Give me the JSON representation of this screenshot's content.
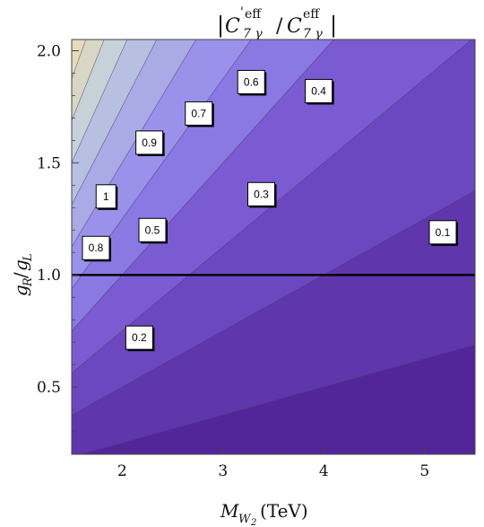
{
  "chart_data": {
    "type": "contour",
    "title": "|C'eff7γ / Ceff7γ|",
    "title_parts": {
      "left_bar": "|",
      "c1": "C",
      "prime": "'",
      "c1_sup": "eff",
      "c1_sub": "7 γ",
      "slash": "/",
      "c2": "C",
      "c2_sup": "eff",
      "c2_sub": "7 γ",
      "right_bar": "|"
    },
    "xlabel": "M_W2 (TeV)",
    "xlabel_parts": {
      "main": "M",
      "sub": "W",
      "subsub": "2",
      "unit": "(TeV)"
    },
    "ylabel": "g_R/g_L",
    "ylabel_parts": {
      "g1": "g",
      "s1": "R",
      "slash": "/",
      "g2": "g",
      "s2": "L"
    },
    "xlim": [
      1.5,
      5.5
    ],
    "ylim": [
      0.2,
      2.05
    ],
    "x_ticks": [
      2,
      3,
      4,
      5
    ],
    "x_tick_labels": [
      "2",
      "3",
      "4",
      "5"
    ],
    "y_ticks": [
      0.5,
      1.0,
      1.5,
      2.0
    ],
    "y_tick_labels": [
      "0.5",
      "1.0",
      "1.5",
      "2.0"
    ],
    "model": {
      "form": "value = k * (g_R/g_L) / M_W2",
      "k": 0.8
    },
    "contour_levels": [
      0.1,
      0.2,
      0.3,
      0.4,
      0.5,
      0.6,
      0.7,
      0.8,
      0.9,
      1.0
    ],
    "contour_labels": [
      {
        "text": "0.1",
        "x": 5.18,
        "y": 1.19
      },
      {
        "text": "0.2",
        "x": 2.17,
        "y": 0.72
      },
      {
        "text": "0.3",
        "x": 3.38,
        "y": 1.36
      },
      {
        "text": "0.4",
        "x": 3.95,
        "y": 1.82
      },
      {
        "text": "0.5",
        "x": 2.3,
        "y": 1.2
      },
      {
        "text": "0.6",
        "x": 3.28,
        "y": 1.86
      },
      {
        "text": "0.7",
        "x": 2.76,
        "y": 1.72
      },
      {
        "text": "0.8",
        "x": 1.74,
        "y": 1.12
      },
      {
        "text": "0.9",
        "x": 2.27,
        "y": 1.59
      },
      {
        "text": "1",
        "x": 1.84,
        "y": 1.35
      }
    ],
    "reference_line": {
      "y": 1.0
    },
    "colors": {
      "stops": [
        {
          "v": 0.0,
          "color": "#4a1c8b"
        },
        {
          "v": 0.1,
          "color": "#53259a"
        },
        {
          "v": 0.2,
          "color": "#5f36ab"
        },
        {
          "v": 0.3,
          "color": "#6b48bf"
        },
        {
          "v": 0.4,
          "color": "#7a5bd1"
        },
        {
          "v": 0.5,
          "color": "#8a78e3"
        },
        {
          "v": 0.6,
          "color": "#9a92ea"
        },
        {
          "v": 0.7,
          "color": "#aaaae6"
        },
        {
          "v": 0.8,
          "color": "#b7c0e0"
        },
        {
          "v": 0.9,
          "color": "#c7d2d8"
        },
        {
          "v": 1.0,
          "color": "#d8d6c4"
        },
        {
          "v": 1.1,
          "color": "#e6dcbd"
        }
      ],
      "contour_line": "#3a2a6a",
      "reference_line": "#000000"
    },
    "grid": false,
    "legend": "none"
  }
}
